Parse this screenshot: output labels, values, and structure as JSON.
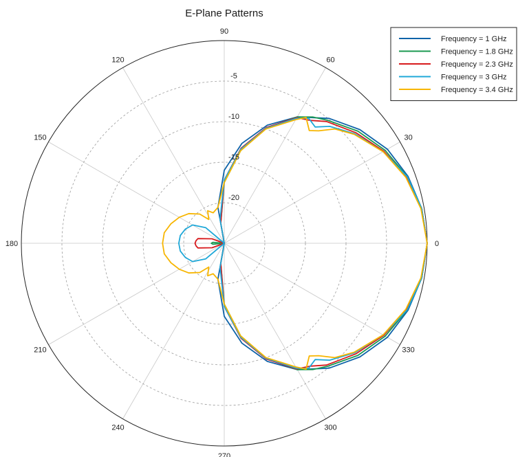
{
  "chart_data": {
    "type": "polar-line",
    "title": "E-Plane Patterns",
    "angle_unit": "degrees",
    "angle_ticks": [
      0,
      30,
      60,
      90,
      120,
      150,
      180,
      210,
      240,
      270,
      300,
      330
    ],
    "angle_tick_labels": [
      "0",
      "30",
      "60",
      "90",
      "120",
      "150",
      "180",
      "210",
      "240",
      "270",
      "300",
      "330"
    ],
    "radial_ticks": [
      -5,
      -10,
      -15,
      -20
    ],
    "radial_tick_labels": [
      "-5",
      "-10",
      "-15",
      "-20"
    ],
    "radial_range": [
      -25,
      0
    ],
    "grid": true,
    "legend_position": "top-right",
    "series": [
      {
        "name": "Frequency = 1 GHz",
        "color": "#0e63a8",
        "points": [
          [
            0,
            0.0
          ],
          [
            10,
            -0.3
          ],
          [
            20,
            -0.9
          ],
          [
            30,
            -1.8
          ],
          [
            40,
            -3.2
          ],
          [
            50,
            -4.9
          ],
          [
            60,
            -7.0
          ],
          [
            70,
            -9.5
          ],
          [
            80,
            -12.5
          ],
          [
            90,
            -16.0
          ],
          [
            100,
            -20.5
          ],
          [
            105,
            -25.0
          ],
          [
            255,
            -25.0
          ],
          [
            260,
            -20.5
          ],
          [
            270,
            -16.0
          ],
          [
            280,
            -12.5
          ],
          [
            290,
            -9.5
          ],
          [
            300,
            -7.0
          ],
          [
            310,
            -4.9
          ],
          [
            320,
            -3.2
          ],
          [
            330,
            -1.8
          ],
          [
            340,
            -0.9
          ],
          [
            350,
            -0.3
          ],
          [
            360,
            0.0
          ]
        ]
      },
      {
        "name": "Frequency = 1.8 GHz",
        "color": "#1a9850",
        "points": [
          [
            0,
            0.0
          ],
          [
            10,
            -0.3
          ],
          [
            20,
            -1.0
          ],
          [
            30,
            -2.1
          ],
          [
            40,
            -3.5
          ],
          [
            50,
            -5.2
          ],
          [
            55,
            -6.0
          ],
          [
            60,
            -7.0
          ],
          [
            70,
            -9.9
          ],
          [
            80,
            -13.4
          ],
          [
            90,
            -17.5
          ],
          [
            100,
            -22.5
          ],
          [
            105,
            -25.0
          ],
          [
            175,
            -23.6
          ],
          [
            180,
            -23.4
          ],
          [
            185,
            -23.6
          ],
          [
            255,
            -25.0
          ],
          [
            260,
            -22.5
          ],
          [
            270,
            -17.5
          ],
          [
            280,
            -13.4
          ],
          [
            290,
            -9.9
          ],
          [
            300,
            -7.0
          ],
          [
            305,
            -6.0
          ],
          [
            310,
            -5.2
          ],
          [
            320,
            -3.5
          ],
          [
            330,
            -2.1
          ],
          [
            340,
            -1.0
          ],
          [
            350,
            -0.3
          ],
          [
            360,
            0.0
          ]
        ]
      },
      {
        "name": "Frequency = 2.3 GHz",
        "color": "#d7191c",
        "points": [
          [
            0,
            0.0
          ],
          [
            10,
            -0.3
          ],
          [
            20,
            -1.1
          ],
          [
            30,
            -2.3
          ],
          [
            40,
            -3.8
          ],
          [
            50,
            -5.4
          ],
          [
            55,
            -6.5
          ],
          [
            60,
            -7.1
          ],
          [
            70,
            -9.8
          ],
          [
            80,
            -13.1
          ],
          [
            90,
            -17.2
          ],
          [
            100,
            -22.5
          ],
          [
            110,
            -25.0
          ],
          [
            160,
            -23.4
          ],
          [
            170,
            -21.7
          ],
          [
            175,
            -21.5
          ],
          [
            180,
            -21.4
          ],
          [
            185,
            -21.5
          ],
          [
            190,
            -21.7
          ],
          [
            200,
            -23.4
          ],
          [
            250,
            -25.0
          ],
          [
            260,
            -22.5
          ],
          [
            270,
            -17.2
          ],
          [
            280,
            -13.1
          ],
          [
            290,
            -9.8
          ],
          [
            300,
            -7.1
          ],
          [
            305,
            -6.5
          ],
          [
            310,
            -5.4
          ],
          [
            320,
            -3.8
          ],
          [
            330,
            -2.3
          ],
          [
            340,
            -1.1
          ],
          [
            350,
            -0.3
          ],
          [
            360,
            0.0
          ]
        ]
      },
      {
        "name": "Frequency = 3 GHz",
        "color": "#1fa8d8",
        "points": [
          [
            0,
            0.0
          ],
          [
            10,
            -0.3
          ],
          [
            20,
            -1.0
          ],
          [
            30,
            -2.4
          ],
          [
            40,
            -4.0
          ],
          [
            48,
            -5.6
          ],
          [
            52,
            -6.8
          ],
          [
            56,
            -6.4
          ],
          [
            60,
            -7.2
          ],
          [
            70,
            -9.9
          ],
          [
            80,
            -13.2
          ],
          [
            90,
            -17.2
          ],
          [
            100,
            -22.0
          ],
          [
            110,
            -25.0
          ],
          [
            140,
            -22.0
          ],
          [
            150,
            -20.5
          ],
          [
            160,
            -19.9
          ],
          [
            170,
            -19.5
          ],
          [
            180,
            -19.4
          ],
          [
            190,
            -19.5
          ],
          [
            200,
            -19.9
          ],
          [
            210,
            -20.5
          ],
          [
            220,
            -22.0
          ],
          [
            250,
            -25.0
          ],
          [
            260,
            -22.0
          ],
          [
            270,
            -17.2
          ],
          [
            280,
            -13.2
          ],
          [
            290,
            -9.9
          ],
          [
            300,
            -7.2
          ],
          [
            304,
            -6.4
          ],
          [
            308,
            -6.8
          ],
          [
            312,
            -5.6
          ],
          [
            320,
            -4.0
          ],
          [
            330,
            -2.4
          ],
          [
            340,
            -1.0
          ],
          [
            350,
            -0.3
          ],
          [
            360,
            0.0
          ]
        ]
      },
      {
        "name": "Frequency = 3.4 GHz",
        "color": "#f7b500",
        "points": [
          [
            0,
            0.0
          ],
          [
            10,
            -0.4
          ],
          [
            20,
            -1.2
          ],
          [
            30,
            -2.4
          ],
          [
            40,
            -4.1
          ],
          [
            46,
            -5.4
          ],
          [
            50,
            -6.9
          ],
          [
            53,
            -7.6
          ],
          [
            57,
            -6.5
          ],
          [
            60,
            -7.4
          ],
          [
            70,
            -10.0
          ],
          [
            80,
            -13.4
          ],
          [
            90,
            -17.5
          ],
          [
            100,
            -20.5
          ],
          [
            110,
            -21.0
          ],
          [
            117,
            -20.5
          ],
          [
            123,
            -21.5
          ],
          [
            130,
            -20.3
          ],
          [
            140,
            -19.3
          ],
          [
            150,
            -18.6
          ],
          [
            160,
            -18.0
          ],
          [
            170,
            -17.5
          ],
          [
            180,
            -17.4
          ],
          [
            190,
            -17.5
          ],
          [
            200,
            -18.0
          ],
          [
            210,
            -18.6
          ],
          [
            220,
            -19.3
          ],
          [
            230,
            -20.3
          ],
          [
            237,
            -21.5
          ],
          [
            243,
            -20.5
          ],
          [
            250,
            -21.0
          ],
          [
            260,
            -20.5
          ],
          [
            270,
            -17.5
          ],
          [
            280,
            -13.4
          ],
          [
            290,
            -10.0
          ],
          [
            300,
            -7.4
          ],
          [
            303,
            -6.5
          ],
          [
            307,
            -7.6
          ],
          [
            310,
            -6.9
          ],
          [
            314,
            -5.4
          ],
          [
            320,
            -4.1
          ],
          [
            330,
            -2.4
          ],
          [
            340,
            -1.2
          ],
          [
            350,
            -0.4
          ],
          [
            360,
            0.0
          ]
        ]
      }
    ]
  }
}
